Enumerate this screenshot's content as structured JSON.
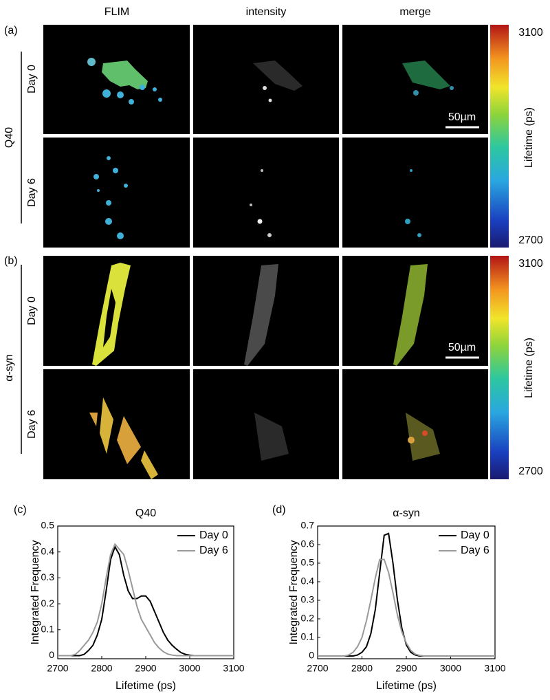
{
  "panel_labels": [
    "(a)",
    "(b)",
    "(c)",
    "(d)"
  ],
  "columns": [
    "FLIM",
    "intensity",
    "merge"
  ],
  "rows": [
    {
      "group": "Q40",
      "days": [
        "Day 0",
        "Day 6"
      ],
      "scale_bar": "50µm",
      "colorbar": {
        "max": 3100,
        "min": 2700,
        "label": "Lifetime (ps)"
      }
    },
    {
      "group": "α-syn",
      "days": [
        "Day 0",
        "Day 6"
      ],
      "scale_bar": "50µm",
      "colorbar": {
        "max": 3100,
        "min": 2700,
        "label": "Lifetime (ps)"
      }
    }
  ],
  "chart_data": [
    {
      "type": "line",
      "title": "Q40",
      "xlabel": "Lifetime (ps)",
      "ylabel": "Integrated Frequency",
      "xlim": [
        2700,
        3100
      ],
      "xticks": [
        2700,
        2800,
        2900,
        3000,
        3100
      ],
      "ylim": [
        -0.012,
        0.5
      ],
      "yticks": [
        0,
        0.1,
        0.2,
        0.3,
        0.4,
        0.5
      ],
      "legend": "upper right",
      "x": [
        2700,
        2710,
        2720,
        2730,
        2740,
        2750,
        2760,
        2770,
        2780,
        2790,
        2800,
        2810,
        2820,
        2830,
        2840,
        2850,
        2860,
        2870,
        2880,
        2890,
        2900,
        2910,
        2920,
        2930,
        2940,
        2950,
        2960,
        2970,
        2980,
        2990,
        3000,
        3010,
        3020,
        3030,
        3040,
        3050,
        3060,
        3070,
        3080,
        3090,
        3100
      ],
      "series": [
        {
          "name": "Day 0",
          "color": "#000000",
          "values": [
            0,
            0,
            0,
            0,
            0,
            0,
            0.005,
            0.02,
            0.04,
            0.08,
            0.14,
            0.25,
            0.37,
            0.42,
            0.39,
            0.31,
            0.25,
            0.22,
            0.22,
            0.23,
            0.23,
            0.21,
            0.17,
            0.13,
            0.09,
            0.06,
            0.04,
            0.025,
            0.012,
            0.005,
            0.002,
            0,
            0,
            0,
            0,
            0,
            0,
            0,
            0,
            0,
            0
          ]
        },
        {
          "name": "Day 6",
          "color": "#999999",
          "values": [
            0,
            0,
            0,
            0,
            0.005,
            0.02,
            0.04,
            0.06,
            0.09,
            0.13,
            0.2,
            0.3,
            0.39,
            0.43,
            0.41,
            0.39,
            0.33,
            0.26,
            0.19,
            0.14,
            0.11,
            0.08,
            0.05,
            0.03,
            0.015,
            0.006,
            0.002,
            0,
            0,
            0,
            0,
            0,
            0,
            0,
            0,
            0,
            0,
            0,
            0,
            0,
            0
          ]
        }
      ]
    },
    {
      "type": "line",
      "title": "α-syn",
      "xlabel": "Lifetime (ps)",
      "ylabel": "Integrated Frequency",
      "xlim": [
        2700,
        3100
      ],
      "xticks": [
        2700,
        2800,
        2900,
        3000,
        3100
      ],
      "ylim": [
        -0.015,
        0.7
      ],
      "yticks": [
        0,
        0.1,
        0.2,
        0.3,
        0.4,
        0.5,
        0.6,
        0.7
      ],
      "legend": "upper right",
      "x": [
        2700,
        2710,
        2720,
        2730,
        2740,
        2750,
        2760,
        2770,
        2780,
        2790,
        2800,
        2810,
        2820,
        2830,
        2840,
        2850,
        2860,
        2870,
        2880,
        2890,
        2900,
        2910,
        2920,
        2930,
        2940,
        2950,
        2960,
        2970,
        2980,
        2990,
        3000,
        3010,
        3020,
        3030,
        3040,
        3050,
        3060,
        3070,
        3080,
        3090,
        3100
      ],
      "series": [
        {
          "name": "Day 0",
          "color": "#000000",
          "values": [
            0,
            0,
            0,
            0,
            0,
            0,
            0,
            0,
            0,
            0.005,
            0.02,
            0.05,
            0.12,
            0.25,
            0.45,
            0.65,
            0.66,
            0.5,
            0.3,
            0.15,
            0.06,
            0.02,
            0.005,
            0,
            0,
            0,
            0,
            0,
            0,
            0,
            0,
            0,
            0,
            0,
            0,
            0,
            0,
            0,
            0,
            0,
            0
          ]
        },
        {
          "name": "Day 6",
          "color": "#999999",
          "values": [
            0,
            0,
            0,
            0,
            0,
            0,
            0,
            0.005,
            0.02,
            0.05,
            0.1,
            0.19,
            0.3,
            0.42,
            0.52,
            0.52,
            0.45,
            0.34,
            0.22,
            0.13,
            0.07,
            0.03,
            0.01,
            0.003,
            0,
            0,
            0,
            0,
            0,
            0,
            0,
            0,
            0,
            0,
            0,
            0,
            0,
            0,
            0,
            0,
            0
          ]
        }
      ]
    }
  ]
}
